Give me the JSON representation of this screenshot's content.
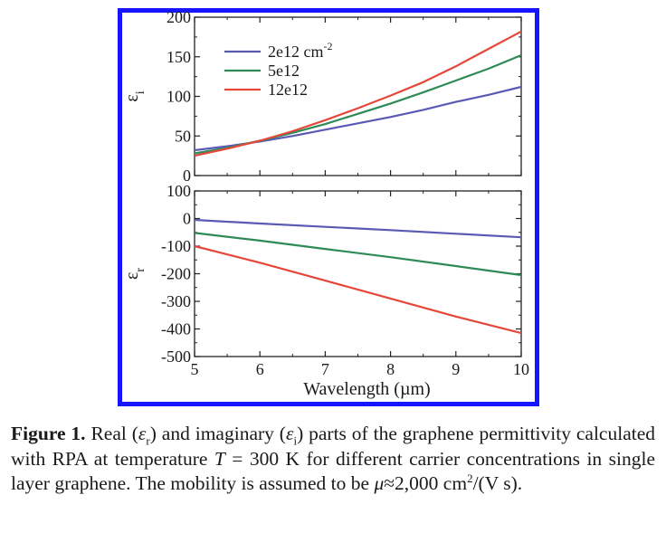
{
  "chart_data": [
    {
      "type": "line",
      "ylabel": "εi",
      "ylim": [
        0,
        200
      ],
      "yticks": [
        0,
        50,
        100,
        150,
        200
      ],
      "xlim": [
        5,
        10
      ],
      "grid": false,
      "legend_placement": "top-left",
      "series": [
        {
          "name": "2e12 cm-2",
          "color": "#5a5ab4",
          "x": [
            5,
            5.5,
            6,
            6.5,
            7,
            7.5,
            8,
            8.5,
            9,
            9.5,
            10
          ],
          "y": [
            32,
            37,
            43,
            50,
            58,
            66,
            74,
            83,
            93,
            102,
            112
          ]
        },
        {
          "name": "5e12",
          "color": "#2e8b57",
          "x": [
            5,
            5.5,
            6,
            6.5,
            7,
            7.5,
            8,
            8.5,
            9,
            9.5,
            10
          ],
          "y": [
            28,
            35,
            44,
            54,
            65,
            78,
            91,
            105,
            120,
            135,
            152
          ]
        },
        {
          "name": "12e12",
          "color": "#e5483a",
          "x": [
            5,
            5.5,
            6,
            6.5,
            7,
            7.5,
            8,
            8.5,
            9,
            9.5,
            10
          ],
          "y": [
            25,
            34,
            44,
            56,
            70,
            85,
            101,
            118,
            138,
            160,
            182
          ]
        }
      ]
    },
    {
      "type": "line",
      "ylabel": "εr",
      "xlabel": "Wavelength (µm)",
      "ylim": [
        -500,
        100
      ],
      "yticks": [
        -500,
        -400,
        -300,
        -200,
        -100,
        0,
        100
      ],
      "xlim": [
        5,
        10
      ],
      "xticks": [
        5,
        6,
        7,
        8,
        9,
        10
      ],
      "grid": false,
      "series": [
        {
          "color": "#5a5ab4",
          "x": [
            5,
            6,
            7,
            8,
            9,
            10
          ],
          "y": [
            -5,
            -18,
            -30,
            -42,
            -55,
            -68
          ]
        },
        {
          "color": "#2e8b57",
          "x": [
            5,
            6,
            7,
            8,
            9,
            10
          ],
          "y": [
            -52,
            -80,
            -110,
            -140,
            -172,
            -205
          ]
        },
        {
          "color": "#e5483a",
          "x": [
            5,
            6,
            7,
            8,
            9,
            10
          ],
          "y": [
            -100,
            -160,
            -225,
            -290,
            -355,
            -415
          ]
        }
      ]
    }
  ],
  "legend": {
    "entries": [
      {
        "label": "2e12 cm",
        "sup": "-2"
      },
      {
        "label": "5e12",
        "sup": ""
      },
      {
        "label": "12e12",
        "sup": ""
      }
    ]
  },
  "caption": {
    "label": "Figure 1.",
    "text_1": " Real (",
    "eps": "ε",
    "sub_r": "r",
    "text_2": ") and imaginary (",
    "sub_i": "i",
    "text_3": ") parts of the graphene permittivity calculated with RPA at temperature ",
    "T": "T",
    "text_4": " = 300 K for different carrier concentrations in single layer graphene. The mobility is assumed to be ",
    "mu": "μ",
    "text_5": "≈2,000 cm",
    "sup_2": "2",
    "text_6": "/(V s)."
  }
}
